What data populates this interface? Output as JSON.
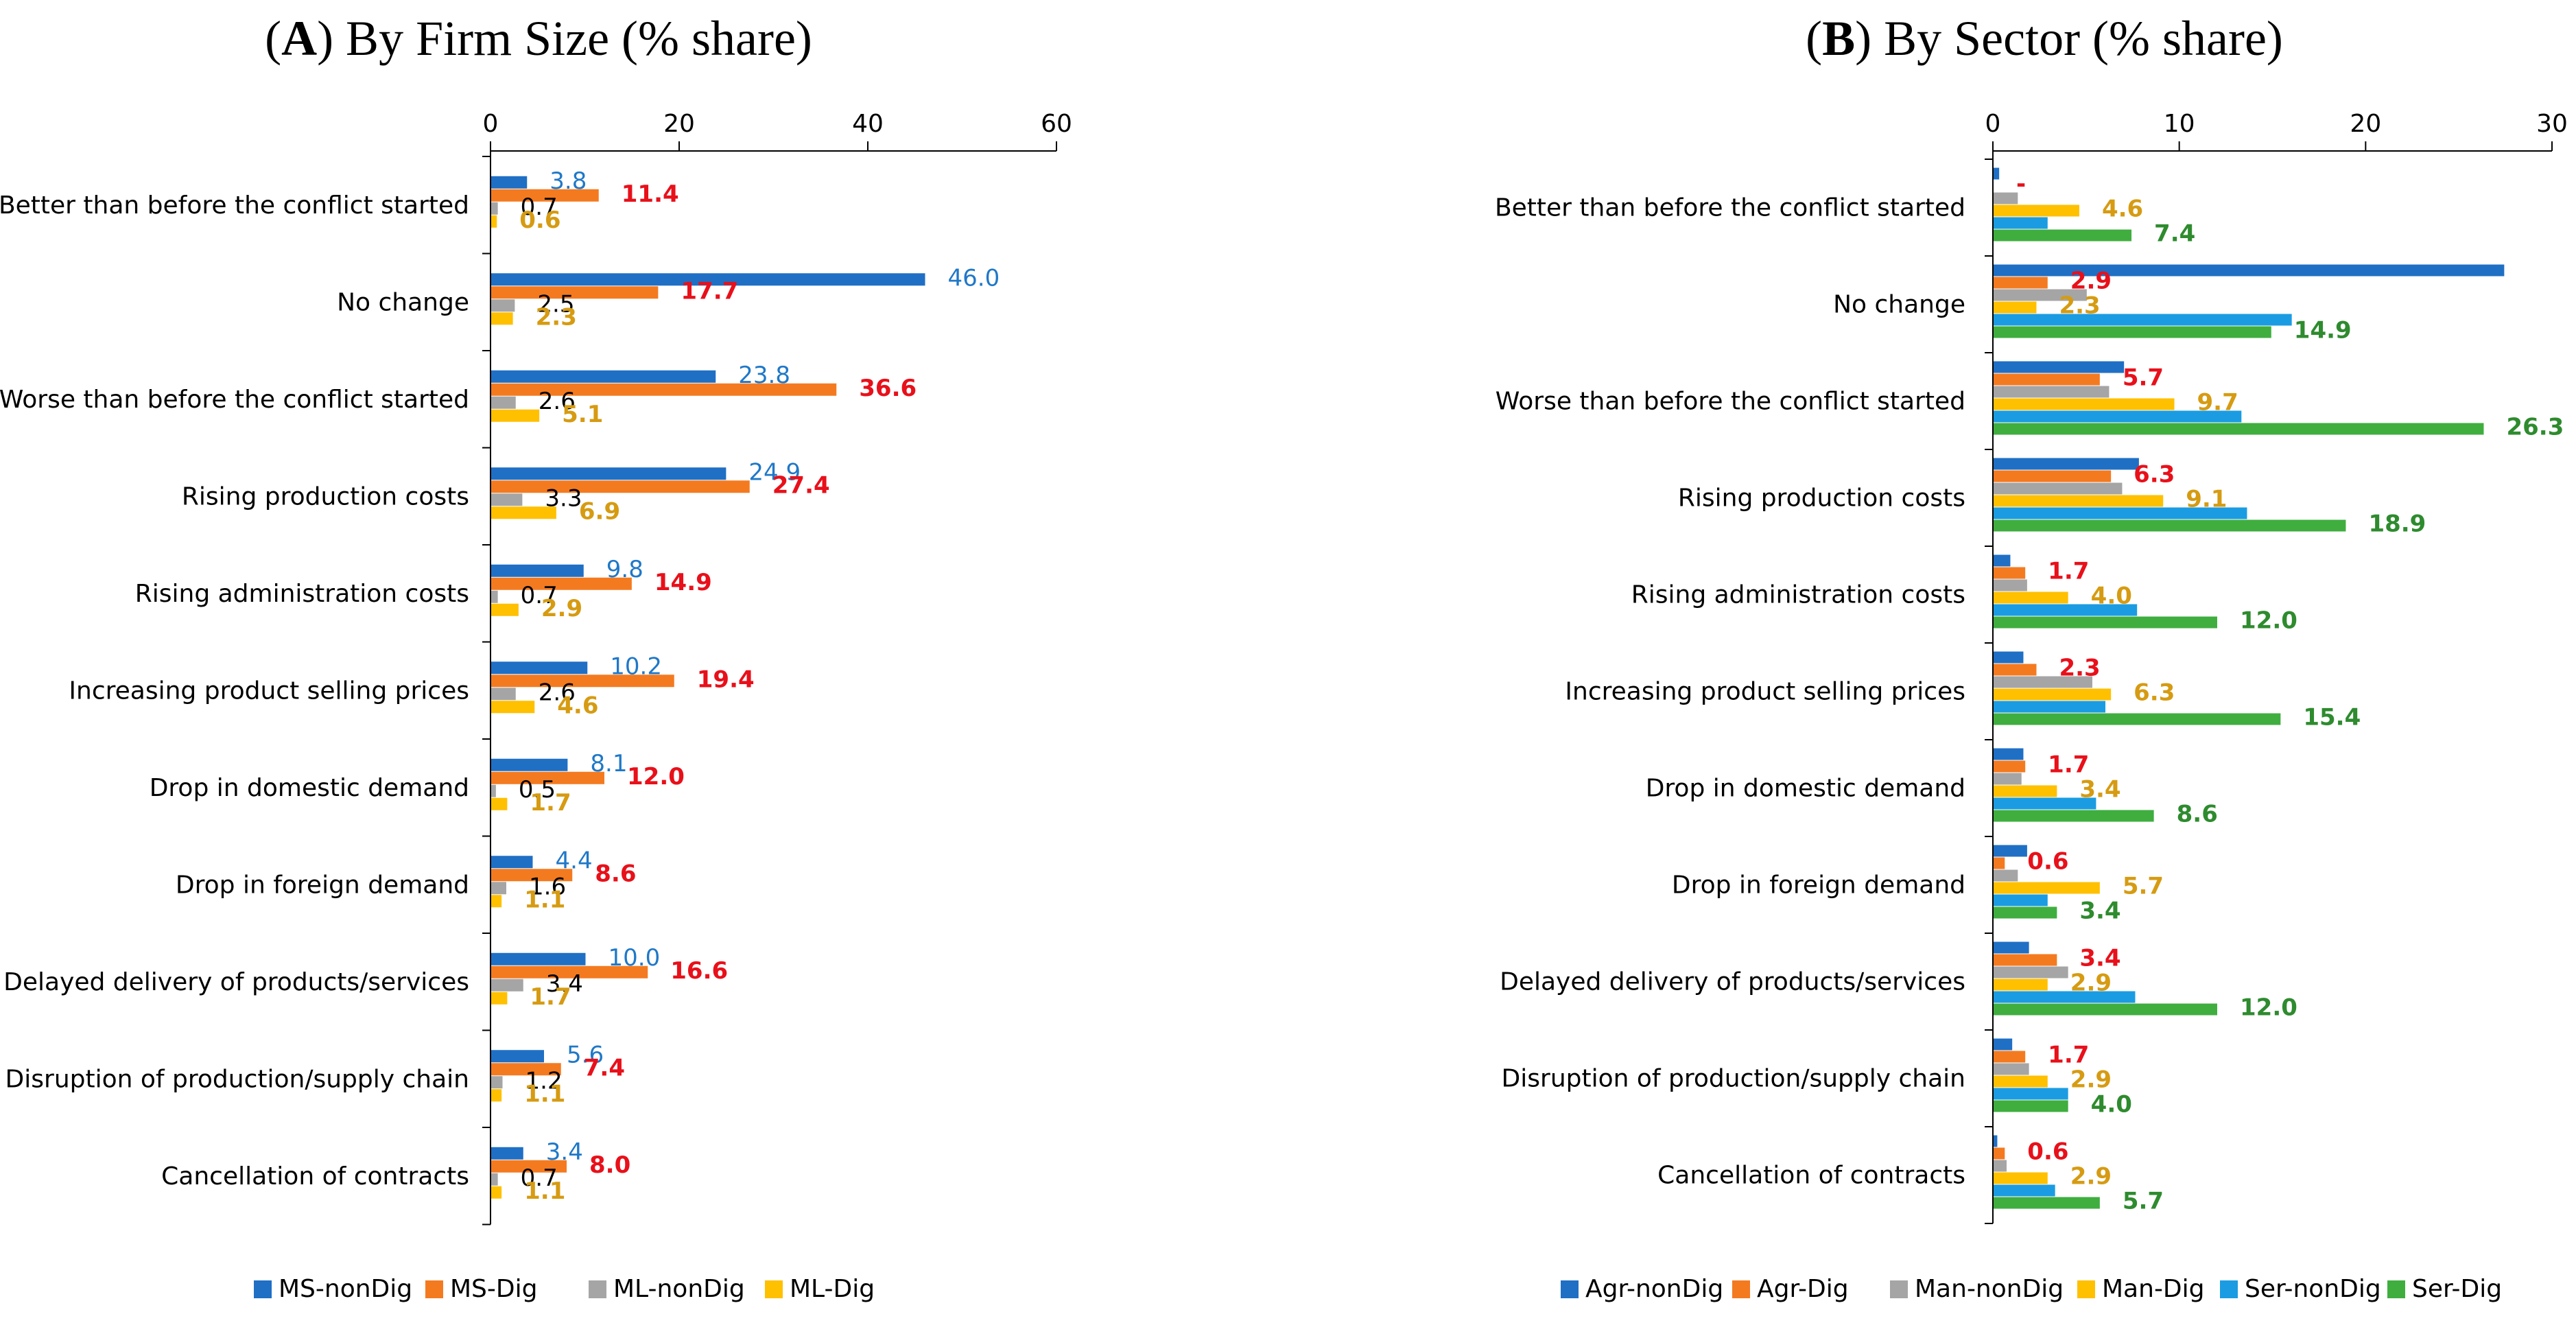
{
  "colors": {
    "blue": "#1F6FC5",
    "orange": "#F47A20",
    "gray": "#A5A5A5",
    "yellow": "#FFC000",
    "light_blue": "#1B9CE2",
    "green": "#3FAE3F",
    "label_blue": "#1F78C8",
    "label_red": "#E8101A",
    "label_black": "#000000",
    "label_gold": "#D69B12",
    "label_green": "#2E8B2E"
  },
  "chart_data": [
    {
      "type": "bar",
      "orientation": "horizontal",
      "title_letter": "A",
      "title_paren_open": "(",
      "title_paren_close": ")",
      "title_rest": " By Firm Size (% share)",
      "xlim": [
        0,
        60
      ],
      "ticks": [
        "0",
        "20",
        "40",
        "60"
      ],
      "tick_values": [
        0,
        20,
        40,
        60
      ],
      "categories": [
        "Better than before the conflict started",
        "No change",
        "Worse than before the conflict started",
        "Rising production costs",
        "Rising administration costs",
        "Increasing product selling prices",
        "Drop in domestic demand",
        "Drop in foreign demand",
        "Delayed delivery of products/services",
        "Disruption of production/supply chain",
        "Cancellation of contracts"
      ],
      "series": [
        {
          "name": "MS-nonDig",
          "color": "#1F6FC5",
          "label_color": "#1F78C8",
          "bold": false,
          "values": [
            3.8,
            46.0,
            23.8,
            24.9,
            9.8,
            10.2,
            8.1,
            4.4,
            10.0,
            5.6,
            3.4
          ],
          "labels": [
            "3.8",
            "46.0",
            "23.8",
            "24.9",
            "9.8",
            "10.2",
            "8.1",
            "4.4",
            "10.0",
            "5.6",
            "3.4"
          ]
        },
        {
          "name": "MS-Dig",
          "color": "#F47A20",
          "label_color": "#E8101A",
          "bold": true,
          "values": [
            11.4,
            17.7,
            36.6,
            27.4,
            14.9,
            19.4,
            12.0,
            8.6,
            16.6,
            7.4,
            8.0
          ],
          "labels": [
            "11.4",
            "17.7",
            "36.6",
            "27.4",
            "14.9",
            "19.4",
            "12.0",
            "8.6",
            "16.6",
            "7.4",
            "8.0"
          ]
        },
        {
          "name": "ML-nonDig",
          "color": "#A5A5A5",
          "label_color": "#000000",
          "bold": false,
          "values": [
            0.7,
            2.5,
            2.6,
            3.3,
            0.7,
            2.6,
            0.5,
            1.6,
            3.4,
            1.2,
            0.7
          ],
          "labels": [
            "0.7",
            "2.5",
            "2.6",
            "3.3",
            "0.7",
            "2.6",
            "0.5",
            "1.6",
            "3.4",
            "1.2",
            "0.7"
          ]
        },
        {
          "name": "ML-Dig",
          "color": "#FFC000",
          "label_color": "#D69B12",
          "bold": true,
          "values": [
            0.6,
            2.3,
            5.1,
            6.9,
            2.9,
            4.6,
            1.7,
            1.1,
            1.7,
            1.1,
            1.1
          ],
          "labels": [
            "0.6",
            "2.3",
            "5.1",
            "6.9",
            "2.9",
            "4.6",
            "1.7",
            "1.1",
            "1.7",
            "1.1",
            "1.1"
          ]
        }
      ]
    },
    {
      "type": "bar",
      "orientation": "horizontal",
      "title_letter": "B",
      "title_paren_open": "(",
      "title_paren_close": ")",
      "title_rest": " By Sector (% share)",
      "xlim": [
        0,
        30
      ],
      "ticks": [
        "0",
        "10",
        "20",
        "30"
      ],
      "tick_values": [
        0,
        10,
        20,
        30
      ],
      "categories": [
        "Better than before the conflict started",
        "No change",
        "Worse than before the conflict started",
        "Rising production costs",
        "Rising administration costs",
        "Increasing product selling prices",
        "Drop in domestic demand",
        "Drop in foreign demand",
        "Delayed delivery of products/services",
        "Disruption of production/supply chain",
        "Cancellation of contracts"
      ],
      "series": [
        {
          "name": "Agr-nonDig",
          "color": "#1F6FC5",
          "label_color": "#1F78C8",
          "bold": false,
          "values": [
            0.3,
            27.4,
            7.0,
            7.8,
            0.9,
            1.6,
            1.6,
            1.8,
            1.9,
            1.0,
            0.2
          ],
          "labels": [
            "",
            "",
            "",
            "",
            "",
            "",
            "",
            "",
            "",
            "",
            ""
          ]
        },
        {
          "name": "Agr-Dig",
          "color": "#F47A20",
          "label_color": "#E8101A",
          "bold": true,
          "values": [
            0.0,
            2.9,
            5.7,
            6.3,
            1.7,
            2.3,
            1.7,
            0.6,
            3.4,
            1.7,
            0.6
          ],
          "labels": [
            "-",
            "2.9",
            "5.7",
            "6.3",
            "1.7",
            "2.3",
            "1.7",
            "0.6",
            "3.4",
            "1.7",
            "0.6"
          ]
        },
        {
          "name": "Man-nonDig",
          "color": "#A5A5A5",
          "label_color": "#000000",
          "bold": false,
          "values": [
            1.3,
            5.0,
            6.2,
            6.9,
            1.8,
            5.3,
            1.5,
            1.3,
            4.0,
            1.9,
            0.7
          ],
          "labels": [
            "",
            "",
            "",
            "",
            "",
            "",
            "",
            "",
            "",
            "",
            ""
          ]
        },
        {
          "name": "Man-Dig",
          "color": "#FFC000",
          "label_color": "#D69B12",
          "bold": true,
          "values": [
            4.6,
            2.3,
            9.7,
            9.1,
            4.0,
            6.3,
            3.4,
            5.7,
            2.9,
            2.9,
            2.9
          ],
          "labels": [
            "4.6",
            "2.3",
            "9.7",
            "9.1",
            "4.0",
            "6.3",
            "3.4",
            "5.7",
            "2.9",
            "2.9",
            "2.9"
          ]
        },
        {
          "name": "Ser-nonDig",
          "color": "#1B9CE2",
          "label_color": "#1F78C8",
          "bold": false,
          "values": [
            2.9,
            16.0,
            13.3,
            13.6,
            7.7,
            6.0,
            5.5,
            2.9,
            7.6,
            4.0,
            3.3
          ],
          "labels": [
            "",
            "",
            "",
            "",
            "",
            "",
            "",
            "",
            "",
            "",
            ""
          ]
        },
        {
          "name": "Ser-Dig",
          "color": "#3FAE3F",
          "label_color": "#2E8B2E",
          "bold": true,
          "values": [
            7.4,
            14.9,
            26.3,
            18.9,
            12.0,
            15.4,
            8.6,
            3.4,
            12.0,
            4.0,
            5.7
          ],
          "labels": [
            "7.4",
            "14.9",
            "26.3",
            "18.9",
            "12.0",
            "15.4",
            "8.6",
            "3.4",
            "12.0",
            "4.0",
            "5.7"
          ]
        }
      ]
    }
  ]
}
